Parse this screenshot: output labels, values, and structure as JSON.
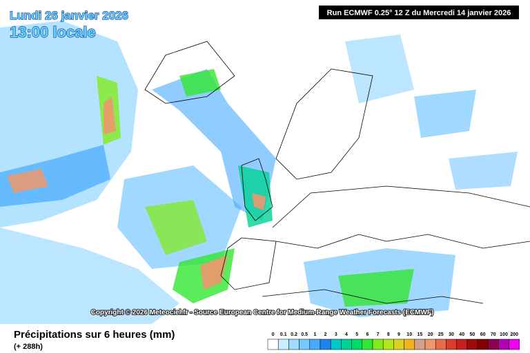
{
  "header": {
    "date": "Lundi 26 janvier 2026",
    "time": "13:00 locale",
    "run": "Run ECMWF 0.25° 12 Z du Mercredi 14 janvier 2026"
  },
  "copyright": "Copyright © 2026 Meteociel.fr - Source European Centre for Medium-Range Weather Forecasts (ECMWF)",
  "footer": {
    "title": "Précipitations sur 6 heures (mm)",
    "lead": "(+ 288h)"
  },
  "legend": {
    "levels": [
      0,
      0.1,
      0.2,
      0.5,
      1,
      2,
      3,
      4,
      5,
      6,
      7,
      8,
      9,
      10,
      15,
      20,
      25,
      30,
      40,
      50,
      60,
      70,
      100,
      200
    ],
    "colors": [
      "#ffffff",
      "#c8f0ff",
      "#a0dcff",
      "#78c8ff",
      "#46aaff",
      "#1e82f0",
      "#00c8c8",
      "#00d296",
      "#00dc64",
      "#32e632",
      "#82eb1e",
      "#b4e61e",
      "#dcd21e",
      "#f0b41e",
      "#d2a08c",
      "#f0966e",
      "#e66e46",
      "#dc3c28",
      "#c81e1e",
      "#a00a0a",
      "#820000",
      "#8c0050",
      "#b400b4",
      "#f000f0"
    ]
  }
}
